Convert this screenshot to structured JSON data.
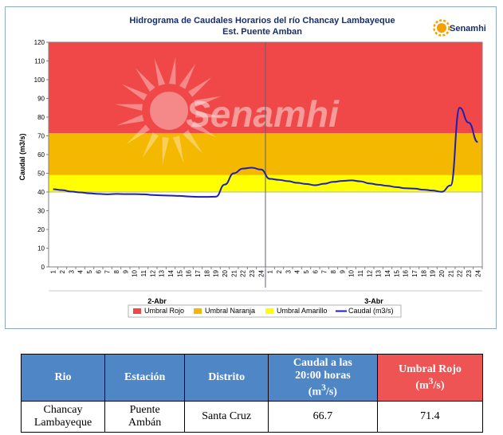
{
  "chart_data": {
    "type": "line",
    "title": "Hidrograma de Caudales Horarios del río Chancay Lambayeque",
    "subtitle": "Est. Puente Amban",
    "ylabel": "Caudal  (m3/s)",
    "ylim": [
      0,
      120
    ],
    "yticks": [
      0,
      10,
      20,
      30,
      40,
      50,
      60,
      70,
      80,
      90,
      100,
      110,
      120
    ],
    "days": [
      {
        "label": "2-Abr",
        "hours": [
          "1",
          "2",
          "3",
          "4",
          "5",
          "6",
          "7",
          "8",
          "9",
          "10",
          "11",
          "12",
          "13",
          "14",
          "15",
          "16",
          "17",
          "18",
          "19",
          "20",
          "21",
          "22",
          "23",
          "24"
        ]
      },
      {
        "label": "3-Abr",
        "hours": [
          "1",
          "2",
          "3",
          "4",
          "5",
          "6",
          "7",
          "8",
          "9",
          "10",
          "11",
          "12",
          "13",
          "14",
          "15",
          "16",
          "17",
          "18",
          "19",
          "20",
          "21",
          "22",
          "23",
          "24"
        ]
      }
    ],
    "bands": [
      {
        "name": "Umbral Rojo",
        "color": "#f04848",
        "from": 71.4,
        "to": 120
      },
      {
        "name": "Umbral Naranja",
        "color": "#f5b800",
        "from": 49,
        "to": 71.4
      },
      {
        "name": "Umbral Amarillo",
        "color": "#ffff00",
        "from": 40,
        "to": 49
      }
    ],
    "series": [
      {
        "name": "Caudal (m3/s)",
        "color": "#1f1fb4",
        "values": [
          41.5,
          41,
          40.2,
          39.8,
          39.3,
          39,
          38.8,
          39,
          38.9,
          38.9,
          38.8,
          38.4,
          38.2,
          38.1,
          37.9,
          37.6,
          37.4,
          37.4,
          37.5,
          44,
          50,
          52.5,
          53,
          52,
          47,
          46.5,
          45.8,
          44.9,
          44.3,
          43.6,
          44.4,
          45.4,
          45.9,
          46.2,
          45.7,
          44.6,
          43.9,
          43.3,
          42.6,
          42,
          41.8,
          41.2,
          40.8,
          40.1,
          43.5,
          85,
          77,
          66.7
        ]
      }
    ],
    "legend_position": "bottom"
  },
  "colors": {
    "title": "#1a2d6b",
    "table_header": "#4f86c6",
    "table_header_alert": "#ef5454",
    "frame_border": "#8faac6"
  },
  "logo": {
    "text": "Senamhi"
  },
  "watermark": {
    "text": "Senamhi"
  },
  "table": {
    "headers": {
      "rio": "Rio",
      "estacion": "Estación",
      "distrito": "Distrito",
      "caudal_line1": "Caudal a las",
      "caudal_line2": "20:00 horas",
      "caudal_unit": "(m",
      "caudal_unit_sup": "3",
      "caudal_unit_end": "/s)",
      "umbral_line1": "Umbral Rojo",
      "umbral_unit": "(m",
      "umbral_unit_sup": "3",
      "umbral_unit_end": "/s)"
    },
    "row": {
      "rio_line1": "Chancay",
      "rio_line2": "Lambayeque",
      "estacion_line1": "Puente",
      "estacion_line2": "Ambán",
      "distrito": "Santa Cruz",
      "caudal": "66.7",
      "umbral": "71.4"
    }
  }
}
